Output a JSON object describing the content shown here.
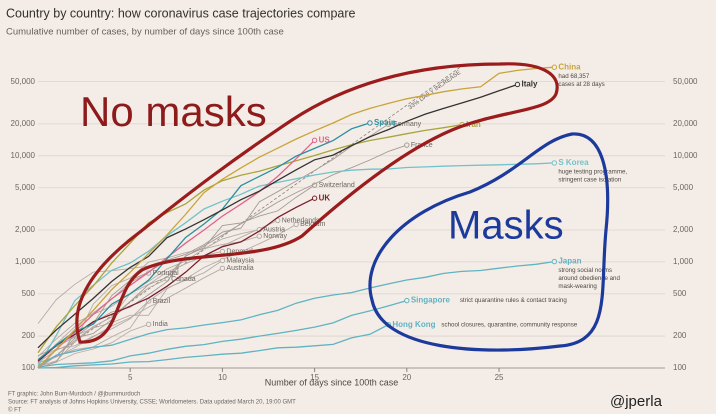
{
  "chart_data": {
    "type": "line",
    "title": "Country by country: how coronavirus case trajectories compare",
    "subtitle": "Cumulative number of cases, by number of days since 100th case",
    "x_label": "Number of days since 100th case",
    "log_scale": true,
    "grid": true,
    "xlim": [
      0,
      34
    ],
    "ylim": [
      100,
      80000
    ],
    "xticks": [
      5,
      10,
      15,
      20,
      25
    ],
    "yticks": [
      100,
      200,
      500,
      {
        "value": 1000,
        "label": "1,000"
      },
      {
        "value": 2000,
        "label": "2,000"
      },
      {
        "value": 5000,
        "label": "5,000"
      },
      {
        "value": 10000,
        "label": "10,000"
      },
      {
        "value": 20000,
        "label": "20,000"
      },
      {
        "value": 50000,
        "label": "50,000"
      }
    ],
    "x": [
      0,
      1,
      2,
      3,
      4,
      5,
      6,
      7,
      8,
      9,
      10,
      11,
      12,
      13,
      14,
      15,
      16,
      17,
      18,
      19,
      20,
      21,
      22,
      23,
      24,
      25,
      26,
      27,
      28
    ],
    "reference_line": {
      "label": "33% DAILY INCREASE",
      "daily_increase_pct": 33
    },
    "series": [
      {
        "name": "Netherlands",
        "color": "#b5aca6",
        "values": [
          128,
          188,
          265,
          321,
          382,
          503,
          614,
          804,
          959,
          1135,
          1413,
          1705,
          2051,
          2460,
          null,
          null,
          null,
          null,
          null,
          null,
          null,
          null,
          null,
          null,
          null,
          null,
          null,
          null,
          null
        ]
      },
      {
        "name": "Belgium",
        "color": "#b5aca6",
        "values": [
          109,
          169,
          200,
          239,
          267,
          314,
          314,
          559,
          689,
          886,
          1058,
          1243,
          1486,
          1795,
          2257,
          null,
          null,
          null,
          null,
          null,
          null,
          null,
          null,
          null,
          null,
          null,
          null,
          null,
          null
        ]
      },
      {
        "name": "Austria",
        "color": "#b5aca6",
        "values": [
          104,
          131,
          182,
          246,
          302,
          504,
          655,
          860,
          1018,
          1332,
          1646,
          1843,
          2013,
          null,
          null,
          null,
          null,
          null,
          null,
          null,
          null,
          null,
          null,
          null,
          null,
          null,
          null,
          null,
          null
        ]
      },
      {
        "name": "Norway",
        "color": "#b5aca6",
        "values": [
          113,
          147,
          176,
          400,
          598,
          702,
          996,
          1090,
          1221,
          1333,
          1463,
          1550,
          1746,
          null,
          null,
          null,
          null,
          null,
          null,
          null,
          null,
          null,
          null,
          null,
          null,
          null,
          null,
          null,
          null
        ]
      },
      {
        "name": "Denmark",
        "color": "#b5aca6",
        "values": [
          262,
          442,
          615,
          801,
          827,
          864,
          914,
          977,
          1057,
          1151,
          1255,
          null,
          null,
          null,
          null,
          null,
          null,
          null,
          null,
          null,
          null,
          null,
          null,
          null,
          null,
          null,
          null,
          null,
          null
        ]
      },
      {
        "name": "Portugal",
        "color": "#b5aca6",
        "values": [
          112,
          169,
          245,
          331,
          448,
          642,
          785,
          null,
          null,
          null,
          null,
          null,
          null,
          null,
          null,
          null,
          null,
          null,
          null,
          null,
          null,
          null,
          null,
          null,
          null,
          null,
          null,
          null,
          null
        ]
      },
      {
        "name": "Canada",
        "color": "#b5aca6",
        "values": [
          103,
          117,
          176,
          244,
          304,
          424,
          569,
          690,
          null,
          null,
          null,
          null,
          null,
          null,
          null,
          null,
          null,
          null,
          null,
          null,
          null,
          null,
          null,
          null,
          null,
          null,
          null,
          null,
          null
        ]
      },
      {
        "name": "Brazil",
        "color": "#b5aca6",
        "values": [
          121,
          151,
          162,
          200,
          234,
          291,
          428,
          null,
          null,
          null,
          null,
          null,
          null,
          null,
          null,
          null,
          null,
          null,
          null,
          null,
          null,
          null,
          null,
          null,
          null,
          null,
          null,
          null,
          null
        ]
      },
      {
        "name": "Malaysia",
        "color": "#b5aca6",
        "values": [
          112,
          129,
          149,
          158,
          197,
          238,
          428,
          566,
          673,
          790,
          1030,
          null,
          null,
          null,
          null,
          null,
          null,
          null,
          null,
          null,
          null,
          null,
          null,
          null,
          null,
          null,
          null,
          null,
          null
        ]
      },
      {
        "name": "Australia",
        "color": "#b5aca6",
        "values": [
          112,
          127,
          156,
          197,
          249,
          298,
          375,
          454,
          565,
          709,
          870,
          null,
          null,
          null,
          null,
          null,
          null,
          null,
          null,
          null,
          null,
          null,
          null,
          null,
          null,
          null,
          null,
          null,
          null
        ]
      },
      {
        "name": "India",
        "color": "#b5aca6",
        "values": [
          107,
          114,
          137,
          151,
          173,
          223,
          258,
          null,
          null,
          null,
          null,
          null,
          null,
          null,
          null,
          null,
          null,
          null,
          null,
          null,
          null,
          null,
          null,
          null,
          null,
          null,
          null,
          null,
          null
        ]
      },
      {
        "name": "Switzerland",
        "color": "#a39a94",
        "values": [
          100,
          114,
          214,
          268,
          337,
          374,
          491,
          652,
          1139,
          1359,
          2200,
          2330,
          2700,
          3028,
          4075,
          5294,
          null,
          null,
          null,
          null,
          null,
          null,
          null,
          null,
          null,
          null,
          null,
          null,
          null
        ]
      },
      {
        "name": "France",
        "color": "#a39a94",
        "values": [
          100,
          130,
          191,
          212,
          285,
          423,
          613,
          716,
          1126,
          1412,
          1784,
          2281,
          2876,
          3661,
          4499,
          5423,
          6633,
          7730,
          9134,
          10995,
          12612,
          null,
          null,
          null,
          null,
          null,
          null,
          null,
          null
        ]
      },
      {
        "name": "Germany",
        "color": "#a39a94",
        "values": [
          130,
          159,
          196,
          262,
          482,
          670,
          799,
          1040,
          1176,
          1457,
          1908,
          2078,
          3675,
          4585,
          5795,
          7272,
          9257,
          12327,
          15320,
          19848,
          null,
          null,
          null,
          null,
          null,
          null,
          null,
          null,
          null
        ]
      },
      {
        "name": "Hong Kong",
        "color": "#5fb3c2",
        "values": [
          100,
          101,
          105,
          107,
          109,
          114,
          115,
          120,
          126,
          130,
          135,
          138,
          146,
          155,
          157,
          162,
          167,
          192,
          208,
          256,
          null,
          null,
          null,
          null,
          null,
          null,
          null,
          null,
          null
        ],
        "note": [
          "school closures, quarantine, community response"
        ]
      },
      {
        "name": "Singapore",
        "color": "#5fb3c2",
        "values": [
          102,
          108,
          110,
          112,
          117,
          130,
          138,
          150,
          160,
          166,
          178,
          187,
          200,
          212,
          226,
          243,
          266,
          313,
          345,
          385,
          432,
          null,
          null,
          null,
          null,
          null,
          null,
          null,
          null
        ],
        "note": [
          "strict quarantine rules & contact tracing"
        ]
      },
      {
        "name": "Japan",
        "color": "#5fb3c2",
        "values": [
          105,
          132,
          144,
          157,
          164,
          186,
          210,
          230,
          239,
          254,
          268,
          284,
          317,
          349,
          408,
          455,
          488,
          514,
          568,
          620,
          675,
          716,
          780,
          814,
          829,
          873,
          914,
          950,
          1007
        ],
        "note": [
          "strong social norms",
          "around obedience and",
          "mask-wearing"
        ]
      },
      {
        "name": "S Korea",
        "color": "#72c2cb",
        "values": [
          104,
          204,
          433,
          602,
          833,
          977,
          1261,
          1766,
          2337,
          3150,
          3736,
          4335,
          5186,
          5621,
          6088,
          6593,
          7041,
          7314,
          7478,
          7513,
          7755,
          7869,
          7979,
          8086,
          8162,
          8236,
          8320,
          8413,
          8565
        ],
        "note": [
          "huge testing programme,",
          "stringent case isolation"
        ]
      },
      {
        "name": "UK",
        "color": "#7a1f2b",
        "values": [
          116,
          164,
          207,
          273,
          321,
          382,
          456,
          590,
          798,
          1140,
          1391,
          1543,
          1950,
          2626,
          3269,
          3983,
          null,
          null,
          null,
          null,
          null,
          null,
          null,
          null,
          null,
          null,
          null,
          null,
          null
        ]
      },
      {
        "name": "Iran",
        "color": "#a9a53b",
        "values": [
          139,
          245,
          388,
          593,
          978,
          1501,
          2336,
          2922,
          3513,
          4747,
          5823,
          6566,
          7161,
          8042,
          9000,
          10075,
          11364,
          12729,
          13938,
          14991,
          16169,
          17361,
          18407,
          19644,
          null,
          null,
          null,
          null,
          null
        ]
      },
      {
        "name": "US",
        "color": "#e0648c",
        "values": [
          100,
          150,
          220,
          320,
          450,
          600,
          800,
          1100,
          1500,
          2000,
          2700,
          3500,
          4600,
          6400,
          9400,
          14000,
          null,
          null,
          null,
          null,
          null,
          null,
          null,
          null,
          null,
          null,
          null,
          null,
          null
        ]
      },
      {
        "name": "Spain",
        "color": "#2a8fa0",
        "values": [
          120,
          165,
          222,
          259,
          400,
          500,
          673,
          1073,
          1695,
          2277,
          3146,
          5232,
          6391,
          7798,
          9942,
          11748,
          13910,
          17963,
          20410,
          null,
          null,
          null,
          null,
          null,
          null,
          null,
          null,
          null,
          null
        ]
      },
      {
        "name": "Italy",
        "color": "#333333",
        "values": [
          155,
          229,
          322,
          453,
          655,
          888,
          1128,
          1694,
          2036,
          2502,
          3089,
          3858,
          4636,
          5883,
          7375,
          9172,
          10149,
          12462,
          15113,
          17660,
          21157,
          24747,
          27980,
          31506,
          35713,
          41035,
          47021,
          null,
          null
        ]
      },
      {
        "name": "China",
        "color": "#c8a43a",
        "values": [
          100,
          150,
          230,
          350,
          550,
          800,
          1200,
          1800,
          2800,
          4500,
          6000,
          7700,
          9700,
          11800,
          14400,
          17200,
          20400,
          24500,
          28000,
          31200,
          34500,
          37200,
          40200,
          42700,
          44700,
          59800,
          63900,
          66500,
          68357
        ],
        "note": [
          "had 68,357",
          "cases at 28 days"
        ]
      }
    ],
    "annotations": {
      "no_masks": "No masks",
      "masks": "Masks"
    },
    "footer": [
      "FT graphic: John Burn-Murdoch / @jburnmurdoch",
      "Source: FT analysis of Johns Hopkins University, CSSE; Worldometers. Data updated March 20, 19:00 GMT",
      "© FT"
    ],
    "credit": "@jperla"
  }
}
